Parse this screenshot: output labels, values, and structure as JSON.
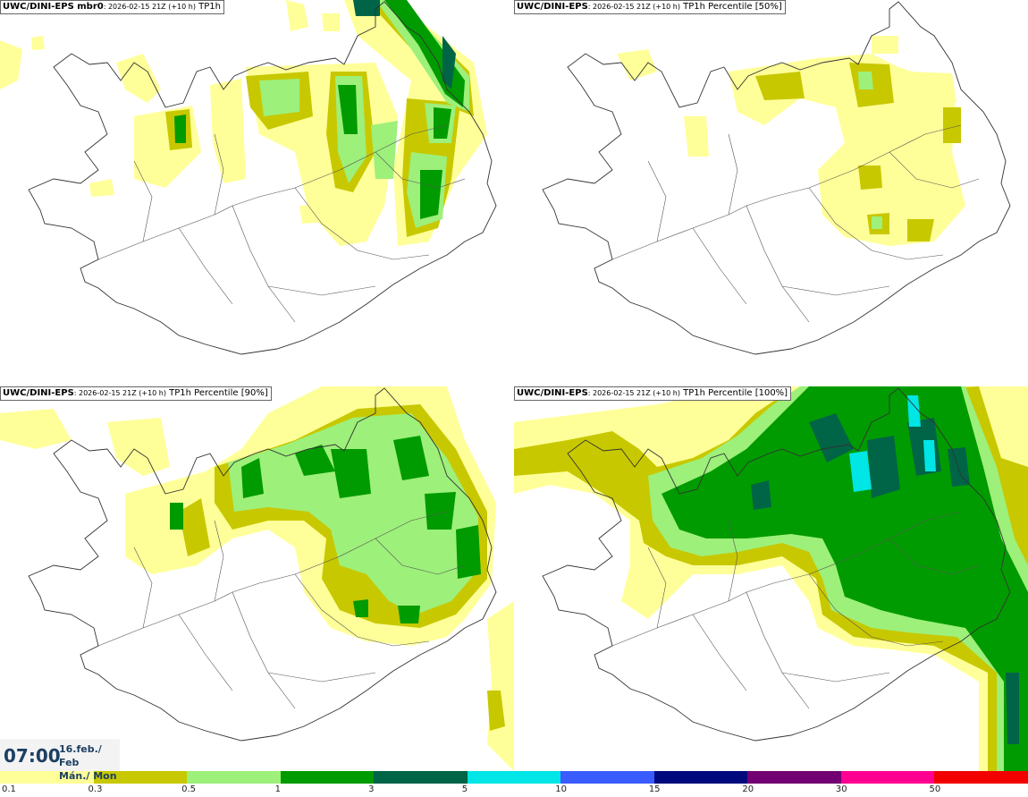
{
  "panels": [
    {
      "title_bold": "UWC/DINI-EPS mbr0",
      "title_small": ": 2026-02-15 21Z (+10 h)",
      "title_rest": " TP1h"
    },
    {
      "title_bold": "UWC/DINI-EPS",
      "title_small": ": 2026-02-15 21Z (+10 h)",
      "title_rest": " TP1h Percentile [50%]"
    },
    {
      "title_bold": "UWC/DINI-EPS",
      "title_small": ": 2026-02-15 21Z (+10 h)",
      "title_rest": " TP1h Percentile [90%]"
    },
    {
      "title_bold": "UWC/DINI-EPS",
      "title_small": ": 2026-02-15 21Z (+10 h)",
      "title_rest": " TP1h Percentile [100%]"
    }
  ],
  "time": {
    "clock": "07:00",
    "date_line1": "16.feb./ Feb",
    "date_line2": "Mán./ Mon"
  },
  "legend": {
    "colors": [
      "#ffff99",
      "#c8c800",
      "#9df07a",
      "#009b00",
      "#006446",
      "#00e5e5",
      "#3a5cff",
      "#000a7d",
      "#720072",
      "#ff0090",
      "#f20000"
    ],
    "labels": [
      "0.1",
      "0.3",
      "0.5",
      "1",
      "3",
      "5",
      "10",
      "15",
      "20",
      "30",
      "50"
    ]
  },
  "palette": {
    "light_yellow": "#ffff99",
    "olive": "#c8c800",
    "light_green": "#9df07a",
    "green": "#009b00",
    "dark_green": "#006446",
    "cyan": "#00e5e5"
  }
}
